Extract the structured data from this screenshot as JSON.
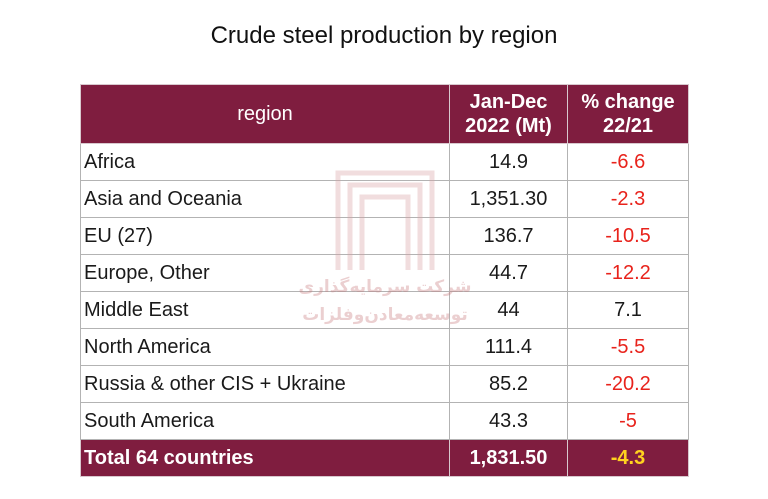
{
  "chart_data": {
    "type": "table",
    "title": "Crude steel production by region",
    "columns": [
      "region",
      "Jan-Dec 2022 (Mt)",
      "% change 22/21"
    ],
    "column_lines": {
      "production": [
        "Jan-Dec",
        "2022 (Mt)"
      ],
      "change": [
        "% change",
        "22/21"
      ]
    },
    "rows": [
      {
        "region": "Africa",
        "production": "14.9",
        "change": "-6.6"
      },
      {
        "region": "Asia and Oceania",
        "production": "1,351.30",
        "change": "-2.3"
      },
      {
        "region": "EU (27)",
        "production": "136.7",
        "change": "-10.5"
      },
      {
        "region": "Europe, Other",
        "production": "44.7",
        "change": "-12.2"
      },
      {
        "region": "Middle East",
        "production": "44",
        "change": "7.1"
      },
      {
        "region": "North America",
        "production": "111.4",
        "change": "-5.5"
      },
      {
        "region": "Russia & other CIS + Ukraine",
        "production": "85.2",
        "change": "-20.2"
      },
      {
        "region": "South America",
        "production": "43.3",
        "change": "-5"
      }
    ],
    "total": {
      "region": "Total 64 countries",
      "production": "1,831.50",
      "change": "-4.3"
    }
  },
  "watermark": {
    "line1": "شرکت سرمایه‌گذاری",
    "line2": "توسعه‌معادن‌وفلزات"
  },
  "colors": {
    "header_bg": "#7f1d3f",
    "negative": "#e8231c",
    "total_change": "#ffd21f",
    "watermark": "#c7787c"
  }
}
